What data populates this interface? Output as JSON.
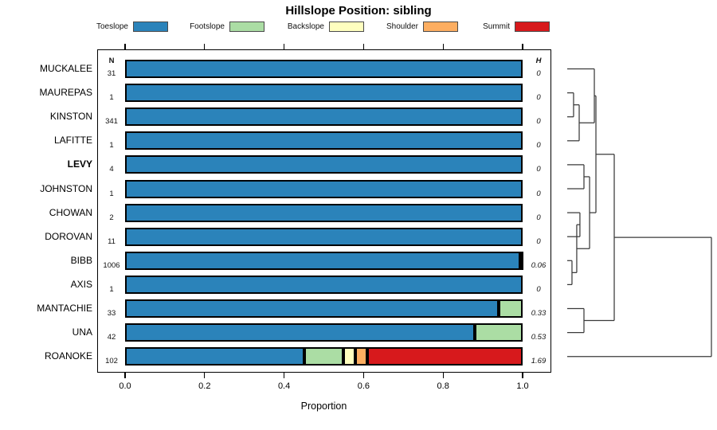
{
  "title": "Hillslope Position: sibling",
  "headers": {
    "n": "N",
    "h": "H"
  },
  "chart_data": {
    "type": "bar",
    "orientation": "horizontal",
    "stacked": true,
    "title": "Hillslope Position: sibling",
    "xlabel": "Proportion",
    "xlim": [
      0,
      1
    ],
    "x_ticks": [
      0,
      0.2,
      0.4,
      0.6,
      0.8,
      1.0
    ],
    "x_tick_labels": [
      "0.0",
      "0.2",
      "0.4",
      "0.6",
      "0.8",
      "1.0"
    ],
    "grid": false,
    "legend_position": "top",
    "categories": [
      "Toeslope",
      "Footslope",
      "Backslope",
      "Shoulder",
      "Summit"
    ],
    "colors": [
      "#2B83BA",
      "#ABDDA4",
      "#FFFFBF",
      "#FDAE61",
      "#D7191C"
    ],
    "rows": [
      {
        "label": "MUCKALEE",
        "n": "31",
        "shannon_h": "0",
        "bold": false,
        "values": [
          1,
          0,
          0,
          0,
          0
        ]
      },
      {
        "label": "MAUREPAS",
        "n": "1",
        "shannon_h": "0",
        "bold": false,
        "values": [
          1,
          0,
          0,
          0,
          0
        ]
      },
      {
        "label": "KINSTON",
        "n": "341",
        "shannon_h": "0",
        "bold": false,
        "values": [
          1,
          0,
          0,
          0,
          0
        ]
      },
      {
        "label": "LAFITTE",
        "n": "1",
        "shannon_h": "0",
        "bold": false,
        "values": [
          1,
          0,
          0,
          0,
          0
        ]
      },
      {
        "label": "LEVY",
        "n": "4",
        "shannon_h": "0",
        "bold": true,
        "values": [
          1,
          0,
          0,
          0,
          0
        ]
      },
      {
        "label": "JOHNSTON",
        "n": "1",
        "shannon_h": "0",
        "bold": false,
        "values": [
          1,
          0,
          0,
          0,
          0
        ]
      },
      {
        "label": "CHOWAN",
        "n": "2",
        "shannon_h": "0",
        "bold": false,
        "values": [
          1,
          0,
          0,
          0,
          0
        ]
      },
      {
        "label": "DOROVAN",
        "n": "11",
        "shannon_h": "0",
        "bold": false,
        "values": [
          1,
          0,
          0,
          0,
          0
        ]
      },
      {
        "label": "BIBB",
        "n": "1006",
        "shannon_h": "0.06",
        "bold": false,
        "values": [
          0.993,
          0.007,
          0,
          0,
          0
        ]
      },
      {
        "label": "AXIS",
        "n": "1",
        "shannon_h": "0",
        "bold": false,
        "values": [
          1,
          0,
          0,
          0,
          0
        ]
      },
      {
        "label": "MANTACHIE",
        "n": "33",
        "shannon_h": "0.33",
        "bold": false,
        "values": [
          0.94,
          0.06,
          0,
          0,
          0
        ]
      },
      {
        "label": "UNA",
        "n": "42",
        "shannon_h": "0.53",
        "bold": false,
        "values": [
          0.88,
          0.12,
          0,
          0,
          0
        ]
      },
      {
        "label": "ROANOKE",
        "n": "102",
        "shannon_h": "1.69",
        "bold": false,
        "values": [
          0.45,
          0.1,
          0.03,
          0.03,
          0.39
        ]
      }
    ],
    "dendrogram": {
      "leaf_ids": [
        "L0",
        "L1",
        "L2",
        "L3",
        "L4",
        "L5",
        "L6",
        "L7",
        "L8",
        "L9",
        "L10",
        "L11",
        "L12"
      ],
      "merges": [
        {
          "id": "M0",
          "a": "L1",
          "b": "L2",
          "h": 0.044
        },
        {
          "id": "M1",
          "a": "M0",
          "b": "L3",
          "h": 0.083
        },
        {
          "id": "M2",
          "a": "L0",
          "b": "M1",
          "h": 0.188
        },
        {
          "id": "M3",
          "a": "L4",
          "b": "L5",
          "h": 0.116
        },
        {
          "id": "M4",
          "a": "L6",
          "b": "L7",
          "h": 0.088
        },
        {
          "id": "M5",
          "a": "L8",
          "b": "L9",
          "h": 0.033
        },
        {
          "id": "M6",
          "a": "M4",
          "b": "M5",
          "h": 0.066
        },
        {
          "id": "M7",
          "a": "M3",
          "b": "M6",
          "h": 0.155
        },
        {
          "id": "M8",
          "a": "M2",
          "b": "M7",
          "h": 0.199
        },
        {
          "id": "M9",
          "a": "L10",
          "b": "L11",
          "h": 0.116
        },
        {
          "id": "M10",
          "a": "M8",
          "b": "M9",
          "h": 0.326
        },
        {
          "id": "M11",
          "a": "M10",
          "b": "L12",
          "h": 1.0
        }
      ]
    }
  }
}
